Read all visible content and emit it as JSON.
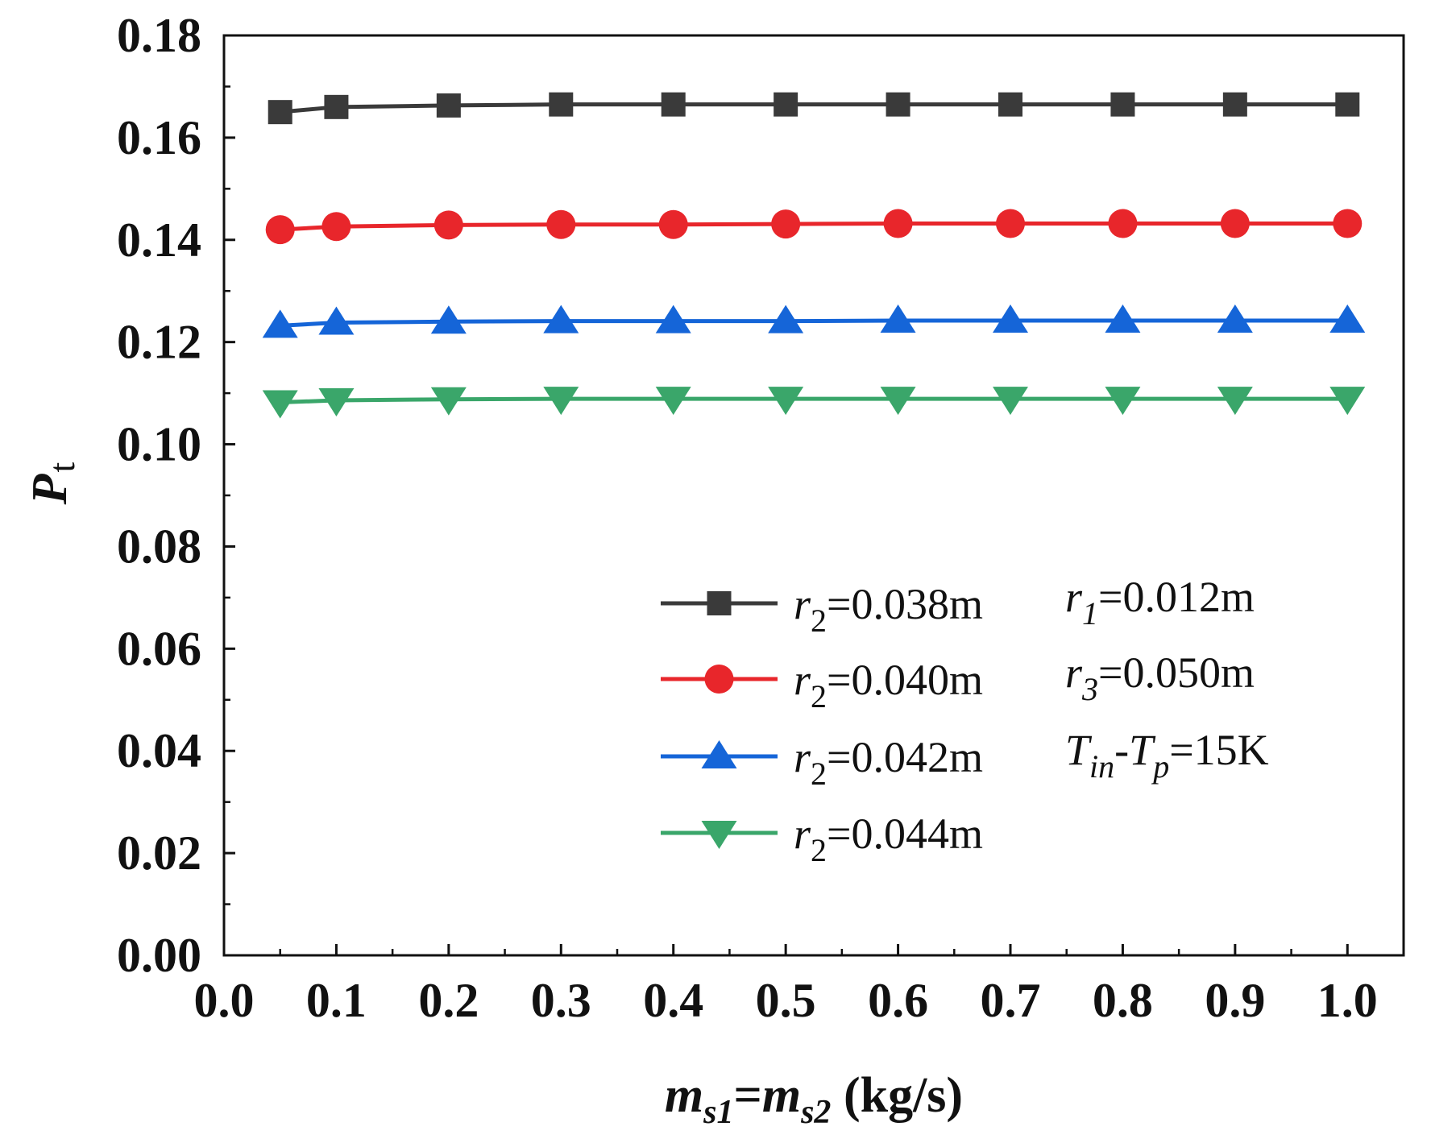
{
  "chart_data": {
    "type": "line",
    "title": "",
    "xlabel": {
      "var": "m",
      "sub1": "s1",
      "eq": "=",
      "var2": "m",
      "sub2": "s2",
      "unit": " (kg/s)"
    },
    "ylabel": {
      "var": "P",
      "sub": "t"
    },
    "xlim": [
      0.0,
      1.05
    ],
    "ylim": [
      0.0,
      0.18
    ],
    "x_ticks": [
      0.0,
      0.1,
      0.2,
      0.3,
      0.4,
      0.5,
      0.6,
      0.7,
      0.8,
      0.9,
      1.0
    ],
    "x_tick_labels": [
      "0.0",
      "0.1",
      "0.2",
      "0.3",
      "0.4",
      "0.5",
      "0.6",
      "0.7",
      "0.8",
      "0.9",
      "1.0"
    ],
    "y_ticks": [
      0.0,
      0.02,
      0.04,
      0.06,
      0.08,
      0.1,
      0.12,
      0.14,
      0.16,
      0.18
    ],
    "y_tick_labels": [
      "0.00",
      "0.02",
      "0.04",
      "0.06",
      "0.08",
      "0.10",
      "0.12",
      "0.14",
      "0.16",
      "0.18"
    ],
    "grid": false,
    "legend_position": "lower-right",
    "x": [
      0.05,
      0.1,
      0.2,
      0.3,
      0.4,
      0.5,
      0.6,
      0.7,
      0.8,
      0.9,
      1.0
    ],
    "series": [
      {
        "name": "r2=0.038m",
        "label_var": "r",
        "label_sub": "2",
        "label_value": "=0.038m",
        "color": "#3a3a3a",
        "marker": "square",
        "values": [
          0.165,
          0.166,
          0.1663,
          0.1665,
          0.1665,
          0.1665,
          0.1665,
          0.1665,
          0.1665,
          0.1665,
          0.1665
        ]
      },
      {
        "name": "r2=0.040m",
        "label_var": "r",
        "label_sub": "2",
        "label_value": "=0.040m",
        "color": "#e8262b",
        "marker": "circle",
        "values": [
          0.142,
          0.1426,
          0.1429,
          0.143,
          0.143,
          0.1431,
          0.1432,
          0.1432,
          0.1432,
          0.1432,
          0.1432
        ]
      },
      {
        "name": "r2=0.042m",
        "label_var": "r",
        "label_sub": "2",
        "label_value": "=0.042m",
        "color": "#1565d8",
        "marker": "triangle-up",
        "values": [
          0.1232,
          0.1238,
          0.124,
          0.1241,
          0.1241,
          0.1241,
          0.1242,
          0.1242,
          0.1242,
          0.1242,
          0.1242
        ]
      },
      {
        "name": "r2=0.044m",
        "label_var": "r",
        "label_sub": "2",
        "label_value": "=0.044m",
        "color": "#3aa66a",
        "marker": "triangle-down",
        "values": [
          0.1082,
          0.1086,
          0.1088,
          0.1089,
          0.1089,
          0.1089,
          0.1089,
          0.1089,
          0.1089,
          0.1089,
          0.1089
        ]
      }
    ],
    "annotations": [
      {
        "var": "r",
        "sub": "1",
        "text": "=0.012m"
      },
      {
        "var": "r",
        "sub": "3",
        "text": "=0.050m"
      },
      {
        "var": "T",
        "sub": "in",
        "mid": "-",
        "var2": "T",
        "sub2": "p",
        "text": "=15K"
      }
    ]
  }
}
